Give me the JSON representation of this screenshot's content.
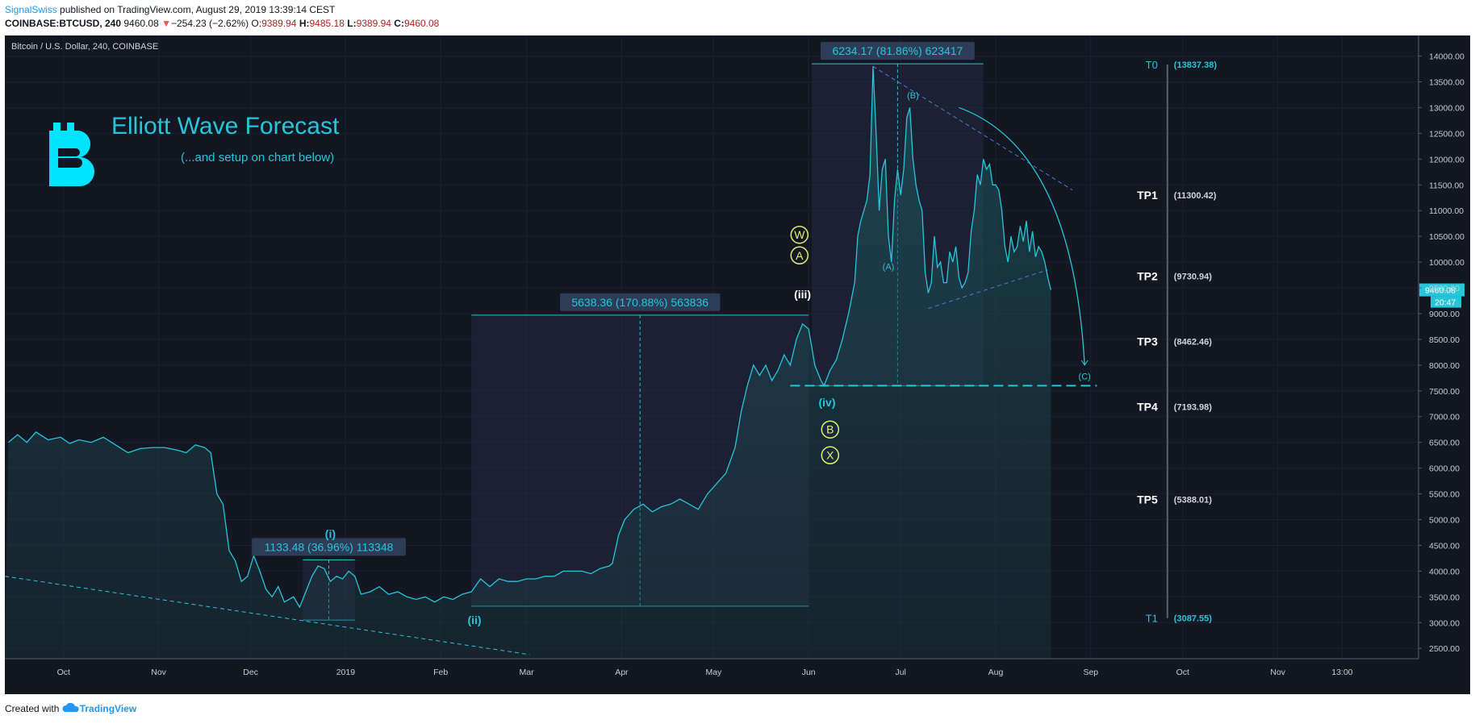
{
  "header": {
    "author": "SignalSwiss",
    "published": "published on TradingView.com, August 29, 2019 13:39:14 CEST",
    "symbol": "COINBASE:BTCUSD, 240",
    "last": "9460.08",
    "down_arrow": "▼",
    "change": "−254.23 (−2.62%)",
    "o_label": "O:",
    "o": "9389.94",
    "h_label": "H:",
    "h": "9485.18",
    "l_label": "L:",
    "l": "9389.94",
    "c_label": "C:",
    "c": "9460.08"
  },
  "footer": {
    "created_with": "Created with",
    "brand": "TradingView"
  },
  "colors": {
    "bg": "#131722",
    "line": "#26c6da",
    "grid": "#1e2433",
    "price_box": "#26c6da",
    "wave_yellow": "#e6ee6f",
    "bitcoin": "#00e5ff"
  },
  "icons": {
    "logo": "bitcoin-logo-icon",
    "tv": "tradingview-cloud-icon"
  },
  "chart_data": {
    "type": "line",
    "title": "Bitcoin / U.S. Dollar, 240, COINBASE",
    "overlay_title": "Elliott Wave Forecast",
    "overlay_subtitle": "(...and setup on chart below)",
    "ylim": [
      2300,
      14400
    ],
    "y_ticks": [
      "14000.00",
      "13500.00",
      "13000.00",
      "12500.00",
      "12000.00",
      "11500.00",
      "11000.00",
      "10500.00",
      "10000.00",
      "9500.00",
      "9000.00",
      "8500.00",
      "8000.00",
      "7500.00",
      "7000.00",
      "6500.00",
      "6000.00",
      "5500.00",
      "5000.00",
      "4500.00",
      "4000.00",
      "3500.00",
      "3000.00",
      "2500.00"
    ],
    "x_ticks": [
      {
        "label": "Oct",
        "m": 1
      },
      {
        "label": "Nov",
        "m": 32
      },
      {
        "label": "Dec",
        "m": 62
      },
      {
        "label": "2019",
        "m": 93
      },
      {
        "label": "Feb",
        "m": 124
      },
      {
        "label": "Mar",
        "m": 152
      },
      {
        "label": "Apr",
        "m": 183
      },
      {
        "label": "May",
        "m": 213
      },
      {
        "label": "Jun",
        "m": 244
      },
      {
        "label": "Jul",
        "m": 274
      },
      {
        "label": "Aug",
        "m": 305
      },
      {
        "label": "Sep",
        "m": 336
      },
      {
        "label": "Oct",
        "m": 366
      },
      {
        "label": "Nov",
        "m": 397
      },
      {
        "label": "13:00",
        "m": 418
      }
    ],
    "series": [
      {
        "name": "BTCUSD",
        "points": [
          [
            -17,
            6500
          ],
          [
            -14,
            6650
          ],
          [
            -11,
            6500
          ],
          [
            -8,
            6700
          ],
          [
            -4,
            6550
          ],
          [
            0,
            6600
          ],
          [
            3,
            6480
          ],
          [
            6,
            6550
          ],
          [
            10,
            6500
          ],
          [
            14,
            6600
          ],
          [
            18,
            6450
          ],
          [
            22,
            6300
          ],
          [
            26,
            6380
          ],
          [
            30,
            6400
          ],
          [
            34,
            6400
          ],
          [
            38,
            6350
          ],
          [
            41,
            6300
          ],
          [
            44,
            6450
          ],
          [
            47,
            6400
          ],
          [
            49,
            6300
          ],
          [
            51,
            5500
          ],
          [
            53,
            5300
          ],
          [
            55,
            4400
          ],
          [
            57,
            4200
          ],
          [
            59,
            3800
          ],
          [
            61,
            3900
          ],
          [
            63,
            4300
          ],
          [
            65,
            4000
          ],
          [
            67,
            3650
          ],
          [
            69,
            3500
          ],
          [
            71,
            3700
          ],
          [
            73,
            3400
          ],
          [
            76,
            3500
          ],
          [
            78,
            3300
          ],
          [
            80,
            3600
          ],
          [
            82,
            3900
          ],
          [
            84,
            4100
          ],
          [
            86,
            4050
          ],
          [
            88,
            3800
          ],
          [
            90,
            3900
          ],
          [
            92,
            3850
          ],
          [
            94,
            4000
          ],
          [
            96,
            3900
          ],
          [
            98,
            3550
          ],
          [
            101,
            3600
          ],
          [
            104,
            3700
          ],
          [
            107,
            3550
          ],
          [
            110,
            3600
          ],
          [
            113,
            3500
          ],
          [
            116,
            3450
          ],
          [
            119,
            3500
          ],
          [
            122,
            3400
          ],
          [
            125,
            3500
          ],
          [
            128,
            3450
          ],
          [
            131,
            3550
          ],
          [
            134,
            3600
          ],
          [
            137,
            3850
          ],
          [
            140,
            3700
          ],
          [
            143,
            3850
          ],
          [
            146,
            3800
          ],
          [
            149,
            3800
          ],
          [
            152,
            3850
          ],
          [
            155,
            3850
          ],
          [
            158,
            3900
          ],
          [
            161,
            3900
          ],
          [
            164,
            4000
          ],
          [
            167,
            4000
          ],
          [
            170,
            4000
          ],
          [
            173,
            3950
          ],
          [
            176,
            4050
          ],
          [
            179,
            4100
          ],
          [
            180,
            4150
          ],
          [
            182,
            4700
          ],
          [
            184,
            5000
          ],
          [
            187,
            5200
          ],
          [
            190,
            5300
          ],
          [
            193,
            5150
          ],
          [
            196,
            5250
          ],
          [
            199,
            5300
          ],
          [
            202,
            5400
          ],
          [
            205,
            5300
          ],
          [
            208,
            5200
          ],
          [
            211,
            5500
          ],
          [
            214,
            5700
          ],
          [
            217,
            5900
          ],
          [
            220,
            6400
          ],
          [
            222,
            7100
          ],
          [
            224,
            7600
          ],
          [
            226,
            8000
          ],
          [
            228,
            7800
          ],
          [
            230,
            8000
          ],
          [
            232,
            7700
          ],
          [
            234,
            7900
          ],
          [
            236,
            8200
          ],
          [
            238,
            8000
          ],
          [
            240,
            8500
          ],
          [
            242,
            8800
          ],
          [
            244,
            8700
          ],
          [
            246,
            8000
          ],
          [
            248,
            7700
          ],
          [
            249,
            7600
          ],
          [
            251,
            7900
          ],
          [
            253,
            8100
          ],
          [
            255,
            8500
          ],
          [
            257,
            9000
          ],
          [
            259,
            9600
          ],
          [
            260,
            10500
          ],
          [
            261,
            10800
          ],
          [
            263,
            11200
          ],
          [
            264,
            11700
          ],
          [
            265,
            13800
          ],
          [
            266,
            12500
          ],
          [
            267,
            11000
          ],
          [
            268,
            11800
          ],
          [
            269,
            12000
          ],
          [
            270,
            10500
          ],
          [
            271,
            10000
          ],
          [
            272,
            11200
          ],
          [
            273,
            11800
          ],
          [
            274,
            11300
          ],
          [
            275,
            11800
          ],
          [
            276,
            12800
          ],
          [
            277,
            13000
          ],
          [
            278,
            12000
          ],
          [
            279,
            11500
          ],
          [
            280,
            11200
          ],
          [
            281,
            11000
          ],
          [
            282,
            9800
          ],
          [
            283,
            9400
          ],
          [
            284,
            9600
          ],
          [
            285,
            10500
          ],
          [
            286,
            9900
          ],
          [
            287,
            10000
          ],
          [
            288,
            9600
          ],
          [
            289,
            9600
          ],
          [
            290,
            10200
          ],
          [
            291,
            10000
          ],
          [
            292,
            10300
          ],
          [
            293,
            9700
          ],
          [
            294,
            9500
          ],
          [
            295,
            9600
          ],
          [
            296,
            9800
          ],
          [
            297,
            10600
          ],
          [
            298,
            11000
          ],
          [
            299,
            11700
          ],
          [
            300,
            11500
          ],
          [
            301,
            12000
          ],
          [
            302,
            11800
          ],
          [
            303,
            11900
          ],
          [
            304,
            11500
          ],
          [
            305,
            11500
          ],
          [
            306,
            11400
          ],
          [
            307,
            11000
          ],
          [
            308,
            10300
          ],
          [
            309,
            10000
          ],
          [
            310,
            10500
          ],
          [
            311,
            10200
          ],
          [
            312,
            10300
          ],
          [
            313,
            10700
          ],
          [
            314,
            10400
          ],
          [
            315,
            10800
          ],
          [
            316,
            10200
          ],
          [
            317,
            10600
          ],
          [
            318,
            10100
          ],
          [
            319,
            10300
          ],
          [
            320,
            10200
          ],
          [
            321,
            10000
          ],
          [
            322,
            9700
          ],
          [
            323,
            9460
          ]
        ]
      }
    ],
    "last_price_label": "9460.08",
    "countdown_label": "20:47",
    "measures": [
      {
        "label": "1133.48 (36.96%) 113348"
      },
      {
        "label": "5638.36 (170.88%) 563836"
      },
      {
        "label": "6234.17 (81.86%) 623417"
      }
    ],
    "wave_labels": [
      "(i)",
      "(ii)",
      "(iii)",
      "(iv)",
      "(A)",
      "(B)",
      "(C)"
    ],
    "circle_labels": [
      "W",
      "A",
      "B",
      "X"
    ],
    "targets": [
      {
        "name": "T0",
        "value": "(13837.38)",
        "price": 13837.38
      },
      {
        "name": "TP1",
        "value": "(11300.42)",
        "price": 11300.42
      },
      {
        "name": "TP2",
        "value": "(9730.94)",
        "price": 9730.94
      },
      {
        "name": "TP3",
        "value": "(8462.46)",
        "price": 8462.46
      },
      {
        "name": "TP4",
        "value": "(7193.98)",
        "price": 7193.98
      },
      {
        "name": "TP5",
        "value": "(5388.01)",
        "price": 5388.01
      },
      {
        "name": "T1",
        "value": "(3087.55)",
        "price": 3087.55
      }
    ],
    "support_level": 7600
  }
}
